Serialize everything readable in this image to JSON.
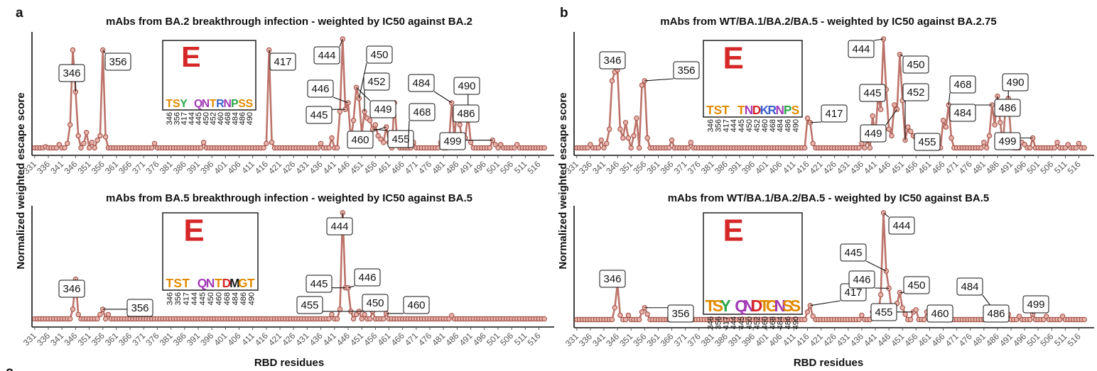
{
  "figure": {
    "ylabel": "Normalized weighted escape score",
    "panel_letters": [
      "a",
      "b",
      "c"
    ]
  },
  "chart_data": [
    {
      "type": "line",
      "panel": "a",
      "title": "mAbs from BA.2 breakthrough infection - weighted by IC50 against BA.2",
      "xlabel": "",
      "ylabel": "Normalized weighted escape score",
      "xticks": [
        331,
        336,
        341,
        346,
        351,
        356,
        361,
        366,
        371,
        376,
        381,
        386,
        391,
        396,
        401,
        406,
        411,
        416,
        421,
        426,
        431,
        436,
        441,
        446,
        451,
        456,
        461,
        466,
        471,
        476,
        481,
        486,
        491,
        496,
        501,
        506,
        511,
        516
      ],
      "xlim": [
        330,
        519
      ],
      "ylim": [
        0,
        1
      ],
      "peaks": {
        "335": 0.02,
        "340": 0.04,
        "343": 0.05,
        "344": 0.22,
        "345": 0.9,
        "346": 0.52,
        "347": 0.12,
        "349": 0.05,
        "350": 0.15,
        "352": 0.06,
        "354": 0.08,
        "355": 0.12,
        "356": 0.9,
        "357": 0.11,
        "375": 0.05,
        "393": 0.06,
        "416": 0.05,
        "417": 0.9,
        "418": 0.06,
        "436": 0.05,
        "440": 0.1,
        "443": 0.34,
        "444": 1.0,
        "445": 0.36,
        "446": 0.42,
        "447": 0.08,
        "448": 0.26,
        "449": 0.56,
        "450": 0.46,
        "451": 0.14,
        "452": 0.34,
        "453": 0.28,
        "454": 0.26,
        "455": 0.18,
        "456": 0.22,
        "457": 0.12,
        "458": 0.09,
        "459": 0.06,
        "460": 0.2,
        "461": 0.06,
        "463": 0.42,
        "464": 0.08,
        "470": 0.06,
        "480": 0.06,
        "483": 0.05,
        "484": 0.42,
        "485": 0.1,
        "486": 0.38,
        "487": 0.22,
        "488": 0.05,
        "489": 0.1,
        "490": 0.32,
        "491": 0.06,
        "499": 0.08,
        "500": 0.04,
        "502": 0.04,
        "508": 0.04
      },
      "labeled_residues": [
        "346",
        "356",
        "417",
        "444",
        "446",
        "445",
        "450",
        "452",
        "449",
        "460",
        "455",
        "484",
        "468",
        "490",
        "486",
        "499"
      ],
      "logo": {
        "positions": [
          "346",
          "356",
          "417",
          "444",
          "445",
          "450",
          "452",
          "460",
          "468",
          "484",
          "486",
          "490"
        ],
        "letters": [
          "T",
          "S",
          "Y",
          "E",
          "Q",
          "N",
          "T",
          "R",
          "N",
          "P",
          "S",
          "S"
        ]
      }
    },
    {
      "type": "line",
      "panel": "a",
      "title": "mAbs from BA.5 breakthrough infection - weighted by IC50 against BA.5",
      "xlabel": "RBD residues",
      "ylabel": "Normalized weighted escape score",
      "xticks": [
        331,
        336,
        341,
        346,
        351,
        356,
        361,
        366,
        371,
        376,
        381,
        386,
        391,
        396,
        401,
        406,
        411,
        416,
        421,
        426,
        431,
        436,
        441,
        446,
        451,
        456,
        461,
        466,
        471,
        476,
        481,
        486,
        491,
        496,
        501,
        506,
        511,
        516
      ],
      "xlim": [
        330,
        519
      ],
      "ylim": [
        0,
        1
      ],
      "peaks": {
        "345": 0.1,
        "346": 0.38,
        "347": 0.05,
        "355": 0.05,
        "356": 0.1,
        "358": 0.05,
        "440": 0.05,
        "443": 0.1,
        "444": 1.0,
        "445": 0.3,
        "446": 0.3,
        "447": 0.08,
        "449": 0.05,
        "450": 0.08,
        "452": 0.05,
        "455": 0.08,
        "460": 0.06,
        "484": 0.04
      },
      "labeled_residues": [
        "346",
        "356",
        "444",
        "445",
        "446",
        "450",
        "455",
        "460"
      ],
      "logo": {
        "positions": [
          "346",
          "356",
          "417",
          "444",
          "445",
          "450",
          "460",
          "468",
          "484",
          "486",
          "490"
        ],
        "letters": [
          "T",
          "S",
          "T",
          "E",
          "Q",
          "N",
          "T",
          "D",
          "M",
          "G",
          "T"
        ]
      }
    },
    {
      "type": "line",
      "panel": "b",
      "title": "mAbs from WT/BA.1/BA.2/BA.5 - weighted by IC50 against BA.2.75",
      "xlabel": "",
      "ylabel": "Normalized weighted escape score",
      "xticks": [
        331,
        336,
        341,
        346,
        351,
        356,
        361,
        366,
        371,
        376,
        381,
        386,
        391,
        396,
        401,
        406,
        411,
        416,
        421,
        426,
        431,
        436,
        441,
        446,
        451,
        456,
        461,
        466,
        471,
        476,
        481,
        486,
        491,
        496,
        501,
        506,
        511,
        516
      ],
      "xlim": [
        330,
        519
      ],
      "ylim": [
        0,
        1
      ],
      "peaks": {
        "336": 0.04,
        "340": 0.08,
        "342": 0.05,
        "343": 0.18,
        "344": 0.62,
        "345": 0.7,
        "346": 0.72,
        "347": 0.18,
        "348": 0.1,
        "349": 0.24,
        "350": 0.1,
        "352": 0.12,
        "353": 0.28,
        "355": 0.58,
        "356": 0.62,
        "357": 0.1,
        "366": 0.08,
        "373": 0.06,
        "416": 0.28,
        "417": 0.24,
        "418": 0.05,
        "436": 0.05,
        "438": 0.08,
        "440": 0.3,
        "441": 0.12,
        "442": 0.48,
        "443": 0.36,
        "444": 1.0,
        "445": 0.54,
        "446": 0.18,
        "447": 0.12,
        "448": 0.4,
        "449": 0.36,
        "450": 0.86,
        "451": 0.44,
        "452": 0.08,
        "453": 0.2,
        "454": 0.16,
        "455": 0.12,
        "456": 0.1,
        "460": 0.08,
        "462": 0.12,
        "466": 0.26,
        "467": 0.2,
        "468": 0.4,
        "469": 0.1,
        "481": 0.06,
        "483": 0.12,
        "484": 0.4,
        "485": 0.22,
        "486": 0.48,
        "487": 0.24,
        "488": 0.04,
        "489": 0.4,
        "490": 0.46,
        "491": 0.1,
        "495": 0.06,
        "496": 0.04,
        "499": 0.1,
        "508": 0.06,
        "512": 0.04,
        "516": 0.05
      },
      "labeled_residues": [
        "346",
        "356",
        "417",
        "444",
        "450",
        "445",
        "452",
        "449",
        "455",
        "468",
        "484",
        "490",
        "486",
        "499"
      ],
      "logo": {
        "positions": [
          "346",
          "356",
          "417",
          "444",
          "445",
          "450",
          "452",
          "460",
          "468",
          "484",
          "486",
          "490"
        ],
        "letters": [
          "T",
          "S",
          "T",
          "E",
          "T",
          "N",
          "D",
          "K",
          "R",
          "N",
          "P",
          "S"
        ]
      }
    },
    {
      "type": "line",
      "panel": "b",
      "title": "mAbs from WT/BA.1/BA.2/BA.5 - weighted by IC50 against BA.5",
      "xlabel": "RBD residues",
      "ylabel": "Normalized weighted escape score",
      "xticks": [
        331,
        336,
        341,
        346,
        351,
        356,
        361,
        366,
        371,
        376,
        381,
        386,
        391,
        396,
        401,
        406,
        411,
        416,
        421,
        426,
        431,
        436,
        441,
        446,
        451,
        456,
        461,
        466,
        471,
        476,
        481,
        486,
        491,
        496,
        501,
        506,
        511,
        516
      ],
      "xlim": [
        330,
        519
      ],
      "ylim": [
        0,
        1
      ],
      "peaks": {
        "345": 0.12,
        "346": 0.34,
        "347": 0.05,
        "350": 0.05,
        "355": 0.08,
        "356": 0.12,
        "357": 0.06,
        "416": 0.08,
        "417": 0.14,
        "418": 0.04,
        "436": 0.05,
        "440": 0.08,
        "441": 0.12,
        "442": 0.06,
        "443": 0.24,
        "444": 1.0,
        "445": 0.46,
        "446": 0.3,
        "447": 0.1,
        "448": 0.06,
        "449": 0.16,
        "450": 0.26,
        "451": 0.12,
        "452": 0.06,
        "455": 0.08,
        "456": 0.1,
        "460": 0.08,
        "462": 0.06,
        "482": 0.04,
        "484": 0.12,
        "485": 0.06,
        "486": 0.06,
        "490": 0.06,
        "494": 0.04,
        "499": 0.06,
        "504": 0.04,
        "510": 0.04
      },
      "labeled_residues": [
        "346",
        "356",
        "417",
        "444",
        "445",
        "446",
        "450",
        "455",
        "460",
        "484",
        "486",
        "499"
      ],
      "logo": {
        "positions": [
          "346",
          "356",
          "417",
          "444",
          "445",
          "450",
          "452",
          "460",
          "468",
          "484",
          "486",
          "490"
        ],
        "letters": [
          "T",
          "S",
          "Y",
          "E",
          "Q",
          "N",
          "D",
          "T",
          "G",
          "N",
          "S",
          "S"
        ]
      }
    }
  ]
}
